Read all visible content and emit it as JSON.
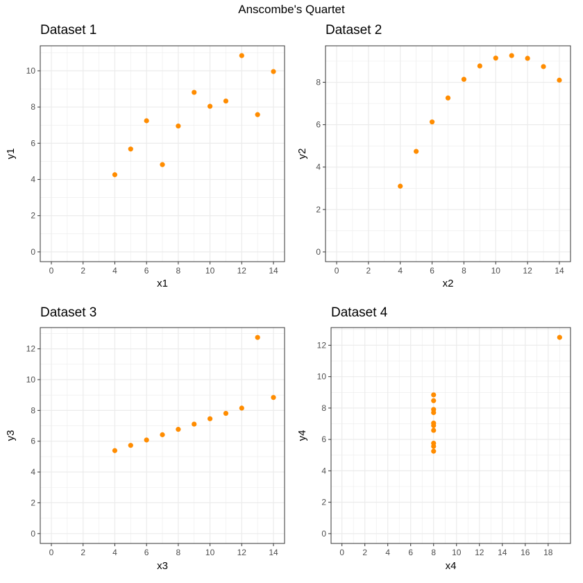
{
  "page_title": "Anscombe's Quartet",
  "colors": {
    "point": "#ff8c00",
    "grid": "#ebebeb",
    "panel_border": "#333333",
    "tick_text": "#4d4d4d"
  },
  "chart_data": [
    {
      "type": "scatter",
      "title": "Dataset 1",
      "xlabel": "x1",
      "ylabel": "y1",
      "x": [
        10,
        8,
        13,
        9,
        11,
        14,
        6,
        4,
        12,
        7,
        5
      ],
      "y": [
        8.04,
        6.95,
        7.58,
        8.81,
        8.33,
        9.96,
        7.24,
        4.26,
        10.84,
        4.82,
        5.68
      ],
      "xlim": [
        -0.7,
        14.7
      ],
      "ylim": [
        -0.54,
        11.38
      ],
      "xticks": [
        0,
        2,
        4,
        6,
        8,
        10,
        12,
        14
      ],
      "yticks": [
        0,
        2,
        4,
        6,
        8,
        10
      ],
      "grid": true
    },
    {
      "type": "scatter",
      "title": "Dataset 2",
      "xlabel": "x2",
      "ylabel": "y2",
      "x": [
        10,
        8,
        13,
        9,
        11,
        14,
        6,
        4,
        12,
        7,
        5
      ],
      "y": [
        9.14,
        8.14,
        8.74,
        8.77,
        9.26,
        8.1,
        6.13,
        3.1,
        9.13,
        7.26,
        4.74
      ],
      "xlim": [
        -0.7,
        14.7
      ],
      "ylim": [
        -0.46,
        9.72
      ],
      "xticks": [
        0,
        2,
        4,
        6,
        8,
        10,
        12,
        14
      ],
      "yticks": [
        0,
        2,
        4,
        6,
        8
      ],
      "grid": true
    },
    {
      "type": "scatter",
      "title": "Dataset 3",
      "xlabel": "x3",
      "ylabel": "y3",
      "x": [
        10,
        8,
        13,
        9,
        11,
        14,
        6,
        4,
        12,
        7,
        5
      ],
      "y": [
        7.46,
        6.77,
        12.74,
        7.11,
        7.81,
        8.84,
        6.08,
        5.39,
        8.15,
        6.42,
        5.73
      ],
      "xlim": [
        -0.7,
        14.7
      ],
      "ylim": [
        -0.64,
        13.38
      ],
      "xticks": [
        0,
        2,
        4,
        6,
        8,
        10,
        12,
        14
      ],
      "yticks": [
        0,
        2,
        4,
        6,
        8,
        10,
        12
      ],
      "grid": true
    },
    {
      "type": "scatter",
      "title": "Dataset 4",
      "xlabel": "x4",
      "ylabel": "y4",
      "x": [
        8,
        8,
        8,
        8,
        8,
        8,
        8,
        19,
        8,
        8,
        8
      ],
      "y": [
        6.58,
        5.76,
        7.71,
        8.84,
        8.47,
        7.04,
        5.25,
        12.5,
        5.56,
        7.91,
        6.89
      ],
      "xlim": [
        -0.95,
        19.95
      ],
      "ylim": [
        -0.625,
        13.125
      ],
      "xticks": [
        0,
        2,
        4,
        6,
        8,
        10,
        12,
        14,
        16,
        18
      ],
      "yticks": [
        0,
        2,
        4,
        6,
        8,
        10,
        12
      ],
      "grid": true
    }
  ]
}
